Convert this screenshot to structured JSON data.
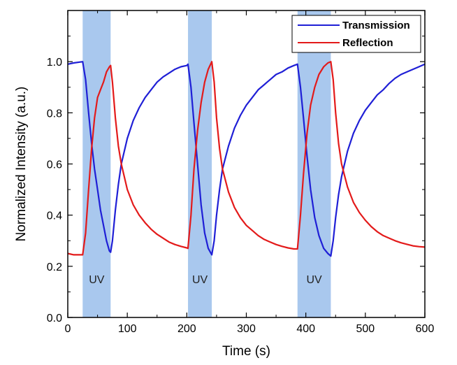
{
  "chart_data": {
    "type": "line",
    "title": "",
    "xlabel": "Time (s)",
    "ylabel": "Normalized Intensity (a.u.)",
    "xlim": [
      0,
      600
    ],
    "ylim": [
      0.0,
      1.2
    ],
    "xticks": [
      0,
      100,
      200,
      300,
      400,
      500,
      600
    ],
    "yticks": [
      0.0,
      0.2,
      0.4,
      0.6,
      0.8,
      1.0
    ],
    "xtick_labels": [
      "0",
      "100",
      "200",
      "300",
      "400",
      "500",
      "600"
    ],
    "ytick_labels": [
      "0.0",
      "0.2",
      "0.4",
      "0.6",
      "0.8",
      "1.0"
    ],
    "grid": false,
    "legend_position": "top-right",
    "uv_bands": [
      {
        "label": "UV",
        "x_start": 25,
        "x_end": 72
      },
      {
        "label": "UV",
        "x_start": 202,
        "x_end": 242
      },
      {
        "label": "UV",
        "x_start": 386,
        "x_end": 442
      }
    ],
    "series": [
      {
        "name": "Transmission",
        "color": "#1f1fd6",
        "points": [
          [
            0,
            0.99
          ],
          [
            10,
            0.995
          ],
          [
            25,
            1.0
          ],
          [
            30,
            0.93
          ],
          [
            35,
            0.8
          ],
          [
            40,
            0.68
          ],
          [
            45,
            0.58
          ],
          [
            50,
            0.5
          ],
          [
            55,
            0.42
          ],
          [
            60,
            0.36
          ],
          [
            65,
            0.3
          ],
          [
            70,
            0.26
          ],
          [
            72,
            0.255
          ],
          [
            75,
            0.3
          ],
          [
            80,
            0.42
          ],
          [
            85,
            0.52
          ],
          [
            90,
            0.6
          ],
          [
            100,
            0.7
          ],
          [
            110,
            0.77
          ],
          [
            120,
            0.82
          ],
          [
            130,
            0.86
          ],
          [
            140,
            0.89
          ],
          [
            150,
            0.92
          ],
          [
            160,
            0.94
          ],
          [
            170,
            0.955
          ],
          [
            180,
            0.97
          ],
          [
            190,
            0.98
          ],
          [
            200,
            0.985
          ],
          [
            202,
            0.99
          ],
          [
            207,
            0.9
          ],
          [
            212,
            0.76
          ],
          [
            218,
            0.6
          ],
          [
            224,
            0.44
          ],
          [
            230,
            0.33
          ],
          [
            236,
            0.27
          ],
          [
            242,
            0.245
          ],
          [
            246,
            0.3
          ],
          [
            250,
            0.4
          ],
          [
            255,
            0.5
          ],
          [
            260,
            0.58
          ],
          [
            270,
            0.67
          ],
          [
            280,
            0.74
          ],
          [
            290,
            0.79
          ],
          [
            300,
            0.83
          ],
          [
            310,
            0.86
          ],
          [
            320,
            0.89
          ],
          [
            330,
            0.91
          ],
          [
            340,
            0.93
          ],
          [
            350,
            0.95
          ],
          [
            360,
            0.96
          ],
          [
            370,
            0.975
          ],
          [
            380,
            0.985
          ],
          [
            386,
            0.99
          ],
          [
            391,
            0.9
          ],
          [
            396,
            0.78
          ],
          [
            402,
            0.63
          ],
          [
            408,
            0.5
          ],
          [
            415,
            0.39
          ],
          [
            422,
            0.32
          ],
          [
            430,
            0.27
          ],
          [
            437,
            0.25
          ],
          [
            442,
            0.24
          ],
          [
            446,
            0.3
          ],
          [
            450,
            0.39
          ],
          [
            455,
            0.48
          ],
          [
            460,
            0.55
          ],
          [
            470,
            0.65
          ],
          [
            480,
            0.72
          ],
          [
            490,
            0.77
          ],
          [
            500,
            0.81
          ],
          [
            510,
            0.84
          ],
          [
            520,
            0.87
          ],
          [
            530,
            0.89
          ],
          [
            540,
            0.915
          ],
          [
            550,
            0.935
          ],
          [
            560,
            0.95
          ],
          [
            570,
            0.96
          ],
          [
            580,
            0.97
          ],
          [
            590,
            0.98
          ],
          [
            600,
            0.99
          ]
        ]
      },
      {
        "name": "Reflection",
        "color": "#e31a1a",
        "points": [
          [
            0,
            0.25
          ],
          [
            10,
            0.245
          ],
          [
            25,
            0.245
          ],
          [
            30,
            0.33
          ],
          [
            35,
            0.5
          ],
          [
            40,
            0.66
          ],
          [
            45,
            0.78
          ],
          [
            50,
            0.86
          ],
          [
            55,
            0.89
          ],
          [
            60,
            0.92
          ],
          [
            65,
            0.96
          ],
          [
            70,
            0.98
          ],
          [
            72,
            0.985
          ],
          [
            75,
            0.92
          ],
          [
            80,
            0.78
          ],
          [
            85,
            0.67
          ],
          [
            90,
            0.6
          ],
          [
            100,
            0.5
          ],
          [
            110,
            0.44
          ],
          [
            120,
            0.4
          ],
          [
            130,
            0.37
          ],
          [
            140,
            0.345
          ],
          [
            150,
            0.325
          ],
          [
            160,
            0.31
          ],
          [
            170,
            0.295
          ],
          [
            180,
            0.285
          ],
          [
            190,
            0.278
          ],
          [
            200,
            0.272
          ],
          [
            202,
            0.27
          ],
          [
            207,
            0.4
          ],
          [
            212,
            0.58
          ],
          [
            218,
            0.73
          ],
          [
            224,
            0.84
          ],
          [
            230,
            0.92
          ],
          [
            236,
            0.97
          ],
          [
            242,
            1.0
          ],
          [
            246,
            0.92
          ],
          [
            250,
            0.78
          ],
          [
            255,
            0.66
          ],
          [
            260,
            0.58
          ],
          [
            270,
            0.49
          ],
          [
            280,
            0.43
          ],
          [
            290,
            0.39
          ],
          [
            300,
            0.36
          ],
          [
            310,
            0.34
          ],
          [
            320,
            0.32
          ],
          [
            330,
            0.305
          ],
          [
            340,
            0.295
          ],
          [
            350,
            0.285
          ],
          [
            360,
            0.278
          ],
          [
            370,
            0.272
          ],
          [
            380,
            0.268
          ],
          [
            386,
            0.268
          ],
          [
            391,
            0.4
          ],
          [
            396,
            0.56
          ],
          [
            402,
            0.72
          ],
          [
            408,
            0.83
          ],
          [
            415,
            0.9
          ],
          [
            422,
            0.95
          ],
          [
            430,
            0.98
          ],
          [
            437,
            0.995
          ],
          [
            442,
            1.0
          ],
          [
            446,
            0.93
          ],
          [
            450,
            0.8
          ],
          [
            455,
            0.68
          ],
          [
            460,
            0.6
          ],
          [
            470,
            0.51
          ],
          [
            480,
            0.45
          ],
          [
            490,
            0.41
          ],
          [
            500,
            0.38
          ],
          [
            510,
            0.355
          ],
          [
            520,
            0.335
          ],
          [
            530,
            0.32
          ],
          [
            540,
            0.31
          ],
          [
            550,
            0.3
          ],
          [
            560,
            0.292
          ],
          [
            570,
            0.286
          ],
          [
            580,
            0.28
          ],
          [
            590,
            0.277
          ],
          [
            600,
            0.275
          ]
        ]
      }
    ]
  }
}
